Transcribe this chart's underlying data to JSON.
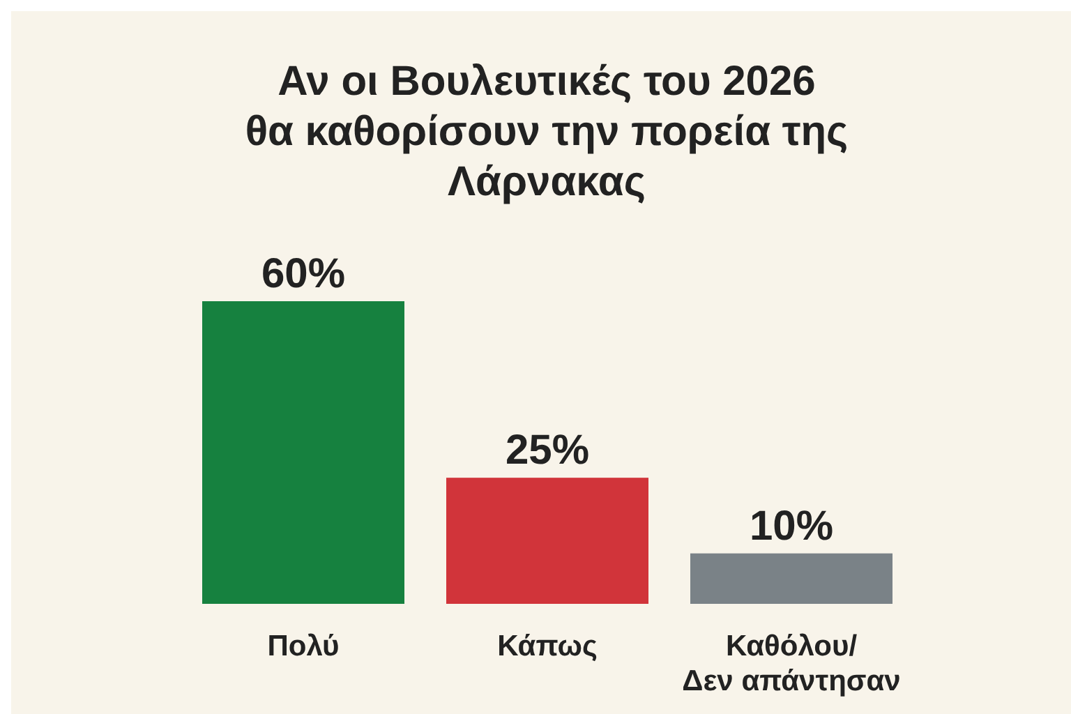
{
  "chart_data": {
    "type": "bar",
    "title": "Αν οι Βουλευτικές του 2026\nθα καθορίσουν την πορεία της\nΛάρνακας",
    "categories": [
      "Πολύ",
      "Κάπως",
      "Καθόλου/\nΔεν απάντησαν"
    ],
    "values": [
      60,
      25,
      10
    ],
    "colors": [
      "#16813f",
      "#d1343a",
      "#7a8287"
    ],
    "value_labels": [
      "60%",
      "25%",
      "10%"
    ]
  }
}
